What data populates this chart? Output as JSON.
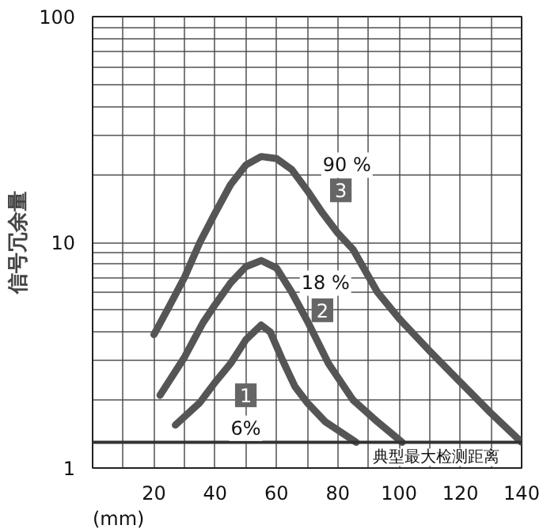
{
  "chart_data": {
    "type": "line",
    "xlabel": "(mm)",
    "ylabel": "信号冗余量",
    "log": "y",
    "grid": true,
    "marker": "none",
    "line_style": "solid",
    "xlim": [
      0,
      140
    ],
    "ylim": [
      1,
      100
    ],
    "xticks": [
      {
        "value": 10,
        "label": null
      },
      20,
      {
        "value": 30,
        "label": null
      },
      40,
      {
        "value": 50,
        "label": null
      },
      60,
      {
        "value": 70,
        "label": null
      },
      80,
      {
        "value": 90,
        "label": null
      },
      100,
      {
        "value": 110,
        "label": null
      },
      120,
      {
        "value": 130,
        "label": null
      },
      140
    ],
    "yticks": [
      1,
      {
        "value": 2,
        "label": null
      },
      {
        "value": 3,
        "label": null
      },
      {
        "value": 4,
        "label": null
      },
      {
        "value": 5,
        "label": null
      },
      {
        "value": 6,
        "label": null
      },
      {
        "value": 7,
        "label": null
      },
      {
        "value": 8,
        "label": null
      },
      {
        "value": 9,
        "label": null
      },
      10,
      {
        "value": 20,
        "label": null
      },
      {
        "value": 30,
        "label": null
      },
      {
        "value": 40,
        "label": null
      },
      {
        "value": 50,
        "label": null
      },
      {
        "value": 60,
        "label": null
      },
      {
        "value": 70,
        "label": null
      },
      {
        "value": 80,
        "label": null
      },
      {
        "value": 90,
        "label": null
      },
      100
    ],
    "series": [
      {
        "color": "#555555",
        "x": [
          20,
          25,
          30,
          35,
          40,
          45,
          50,
          55,
          60,
          65,
          70,
          75,
          80,
          85,
          93,
          100,
          110,
          120,
          130,
          140
        ],
        "values": [
          3.9,
          5.2,
          7,
          10,
          13.5,
          18,
          22,
          24,
          23.5,
          21,
          17,
          13.5,
          11,
          9.3,
          6,
          4.6,
          3.3,
          2.4,
          1.75,
          1.3
        ]
      },
      {
        "color": "#555555",
        "x": [
          22,
          30,
          36,
          40,
          45,
          50,
          55,
          60,
          65,
          70,
          77,
          85,
          93,
          101
        ],
        "values": [
          2.1,
          3.1,
          4.4,
          5.3,
          6.6,
          7.8,
          8.3,
          7.7,
          6,
          4.5,
          2.9,
          2,
          1.6,
          1.3
        ]
      },
      {
        "color": "#555555",
        "x": [
          27,
          35,
          40,
          45,
          50,
          55,
          58,
          62,
          66,
          70,
          76,
          86
        ],
        "values": [
          1.55,
          1.95,
          2.4,
          2.9,
          3.7,
          4.3,
          4,
          3,
          2.3,
          1.95,
          1.6,
          1.3
        ]
      }
    ],
    "ref_lines": [
      {
        "axis": "y",
        "value": 1.3,
        "label": "典型最大检测距离",
        "color": "#333333"
      }
    ],
    "annotations": [
      {
        "text": "90 %",
        "x": 83,
        "y": 22
      },
      {
        "text": "3",
        "x": 81,
        "y": 17
      },
      {
        "text": "18 %",
        "x": 76,
        "y": 6.6
      },
      {
        "text": "2",
        "x": 75,
        "y": 5
      },
      {
        "text": "6%",
        "x": 50,
        "y": 1.5
      },
      {
        "text": "1",
        "x": 50,
        "y": 2.1
      }
    ]
  }
}
